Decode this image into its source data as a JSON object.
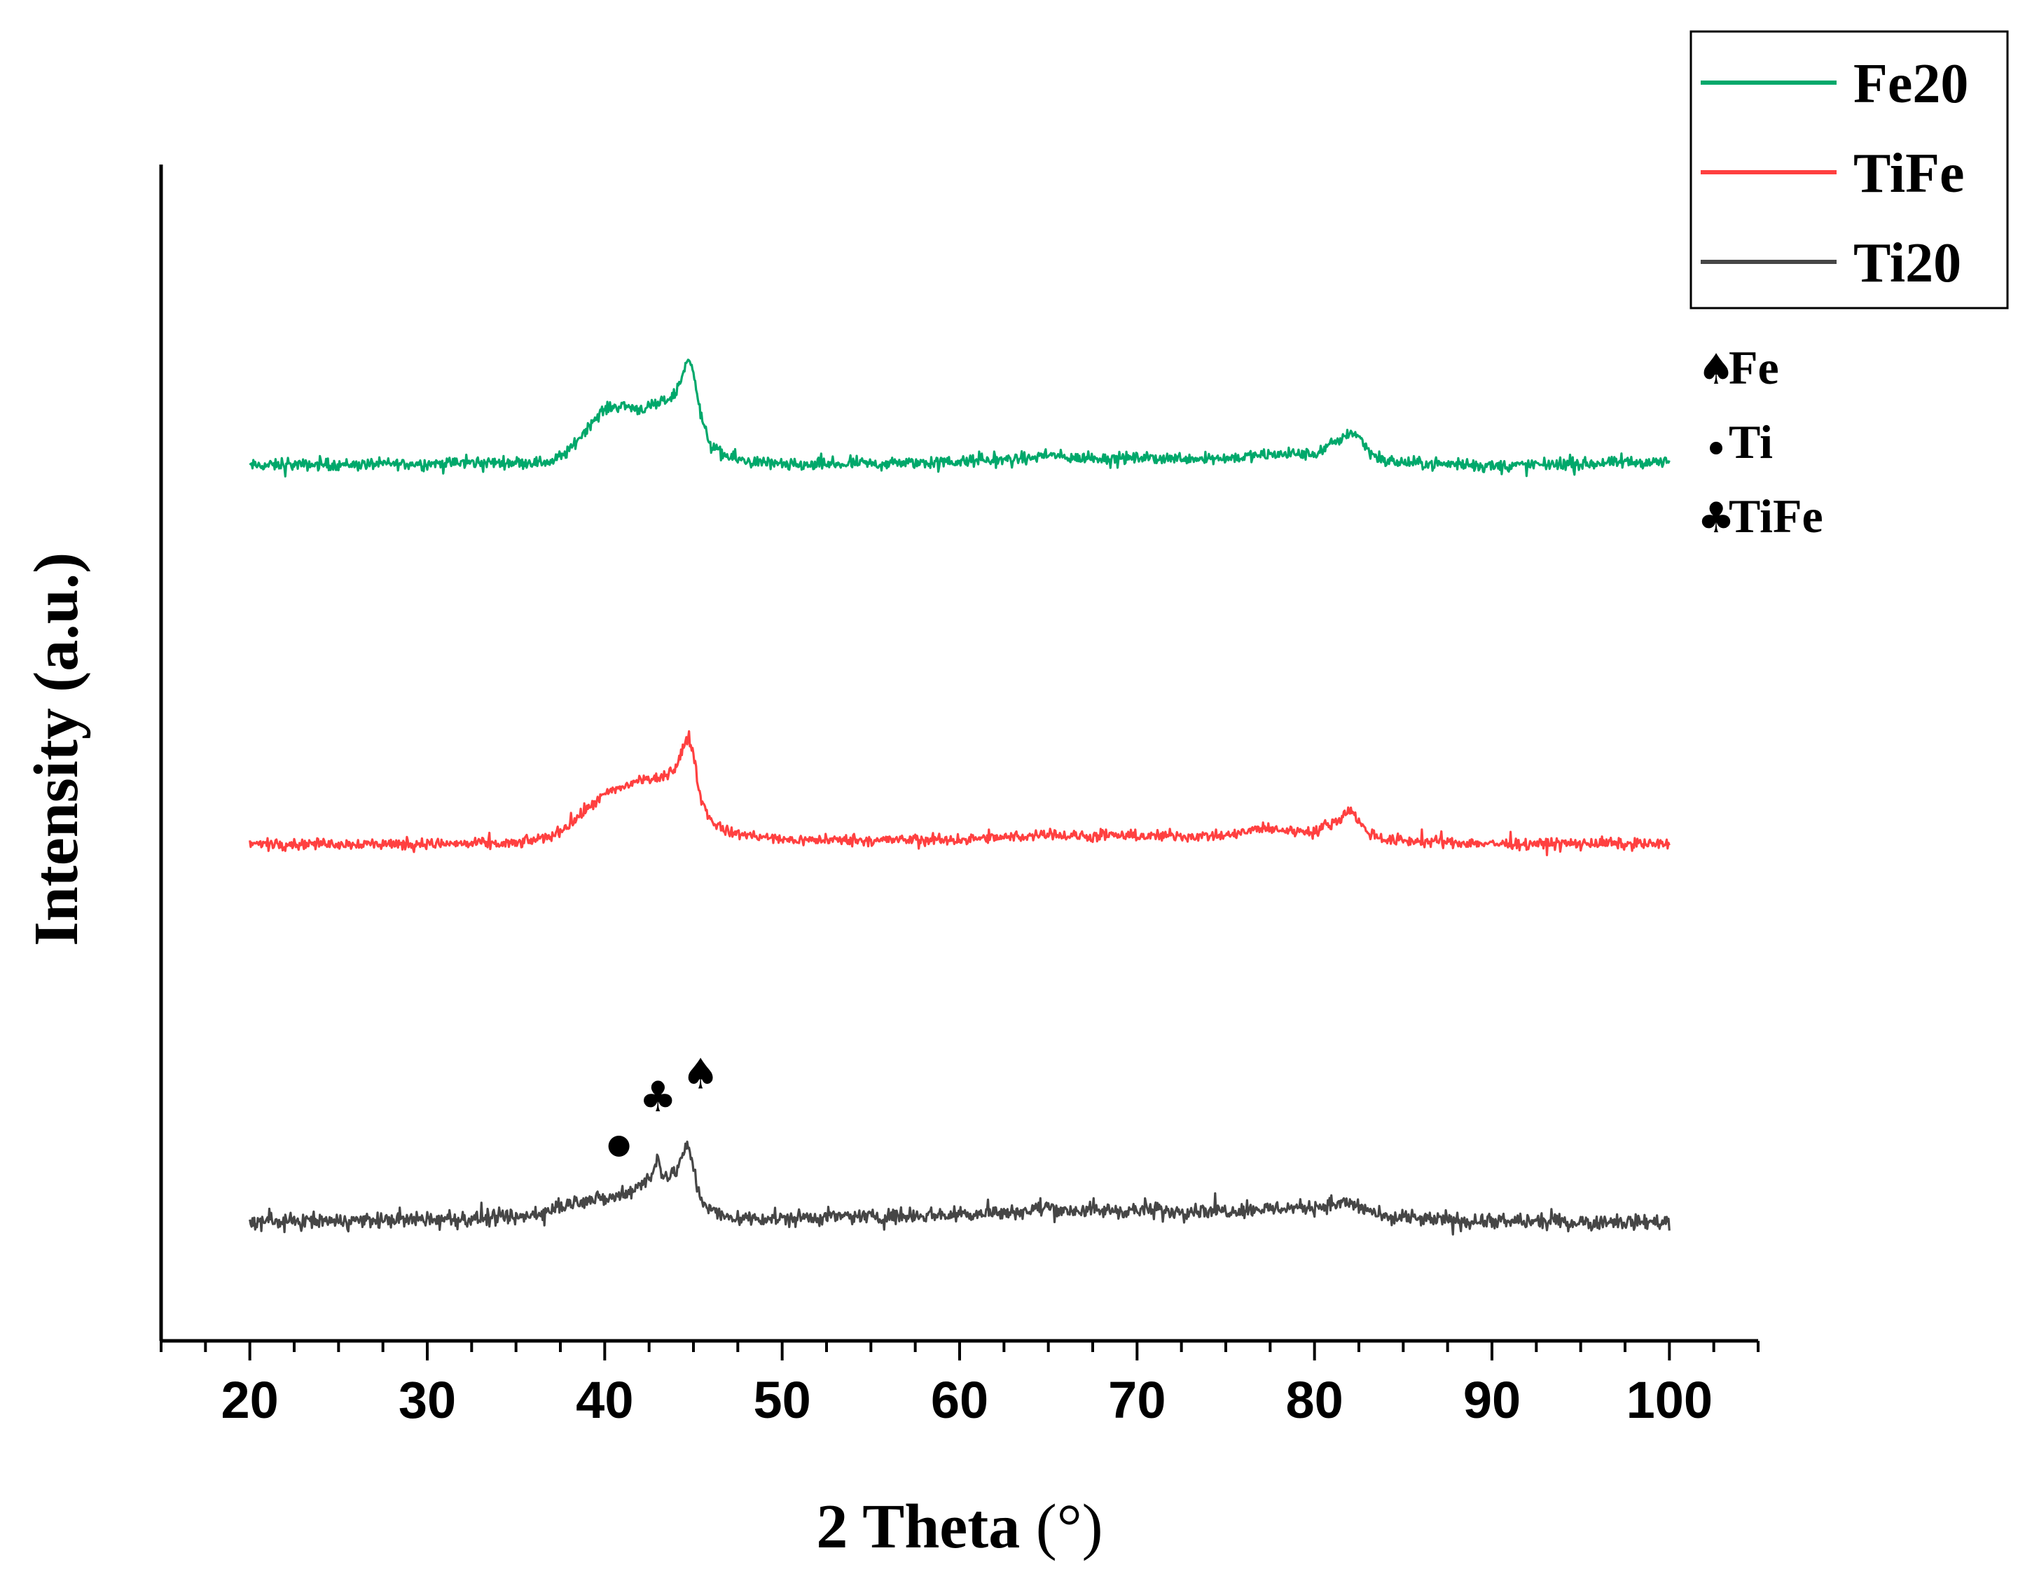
{
  "chart_data": {
    "type": "line",
    "title": "",
    "xlabel": "2 Theta",
    "xlabel_unit": "(°)",
    "ylabel": "Intensity (a.u.)",
    "xlim": [
      15,
      105
    ],
    "x_ticks": [
      20,
      30,
      40,
      50,
      60,
      70,
      80,
      90,
      100
    ],
    "x_tick_labels": [
      "20",
      "30",
      "40",
      "50",
      "60",
      "70",
      "80",
      "90",
      "100"
    ],
    "y_ticks_shown": false,
    "grid": false,
    "legend_position": "top-right",
    "series": [
      {
        "name": "Fe20",
        "color": "#00a86b",
        "baseline": 2.0,
        "noise": 0.022,
        "x": [
          20,
          37,
          38,
          39,
          40,
          41,
          42,
          43,
          44,
          44.3,
          44.7,
          45.0,
          45.4,
          46,
          47,
          50,
          60,
          64,
          65,
          66,
          70,
          75,
          78,
          80,
          81.5,
          82,
          82.5,
          83,
          84,
          90,
          100
        ],
        "y": [
          2.0,
          2.01,
          2.04,
          2.1,
          2.15,
          2.16,
          2.15,
          2.16,
          2.19,
          2.23,
          2.28,
          2.26,
          2.13,
          2.05,
          2.02,
          2.0,
          2.01,
          2.02,
          2.03,
          2.02,
          2.02,
          2.02,
          2.03,
          2.03,
          2.07,
          2.09,
          2.08,
          2.04,
          2.01,
          2.0,
          2.01
        ]
      },
      {
        "name": "TiFe",
        "color": "#ff4040",
        "baseline": 1.0,
        "noise": 0.02,
        "x": [
          20,
          35,
          37,
          38,
          39,
          40,
          41,
          42,
          43,
          44,
          44.3,
          44.7,
          45.0,
          45.4,
          46,
          47,
          50,
          60,
          64,
          65,
          66,
          70,
          75,
          77,
          80,
          81.5,
          82,
          82.5,
          83,
          84,
          90,
          100
        ],
        "y": [
          1.0,
          1.0,
          1.02,
          1.05,
          1.09,
          1.13,
          1.15,
          1.17,
          1.17,
          1.2,
          1.24,
          1.28,
          1.24,
          1.12,
          1.06,
          1.03,
          1.01,
          1.01,
          1.02,
          1.03,
          1.02,
          1.02,
          1.02,
          1.04,
          1.03,
          1.07,
          1.09,
          1.06,
          1.03,
          1.01,
          1.0,
          1.0
        ]
      },
      {
        "name": "Ti20",
        "color": "#464646",
        "baseline": 0.0,
        "noise": 0.028,
        "x": [
          20,
          35,
          37,
          38,
          39,
          40,
          41,
          42,
          42.7,
          43.0,
          43.3,
          44,
          44.4,
          44.7,
          45.0,
          45.4,
          46,
          47,
          50,
          60,
          64,
          65,
          66,
          70,
          75,
          80,
          82,
          83,
          84,
          90,
          100
        ],
        "y": [
          0.0,
          0.01,
          0.03,
          0.05,
          0.06,
          0.06,
          0.07,
          0.1,
          0.12,
          0.18,
          0.12,
          0.13,
          0.18,
          0.2,
          0.14,
          0.06,
          0.03,
          0.01,
          0.01,
          0.02,
          0.03,
          0.04,
          0.03,
          0.03,
          0.03,
          0.04,
          0.05,
          0.03,
          0.01,
          0.0,
          0.0
        ]
      }
    ],
    "peak_markers": [
      {
        "symbol": "●",
        "x": 40.8,
        "y": 0.2,
        "phase": "Ti"
      },
      {
        "symbol": "♣",
        "x": 43.0,
        "y": 0.33,
        "phase": "TiFe"
      },
      {
        "symbol": "♠",
        "x": 45.4,
        "y": 0.39,
        "phase": "Fe"
      }
    ],
    "marker_key": [
      {
        "symbol": "♠",
        "label": "Fe"
      },
      {
        "symbol": "●",
        "label": "Ti"
      },
      {
        "symbol": "♣",
        "label": "TiFe"
      }
    ]
  }
}
